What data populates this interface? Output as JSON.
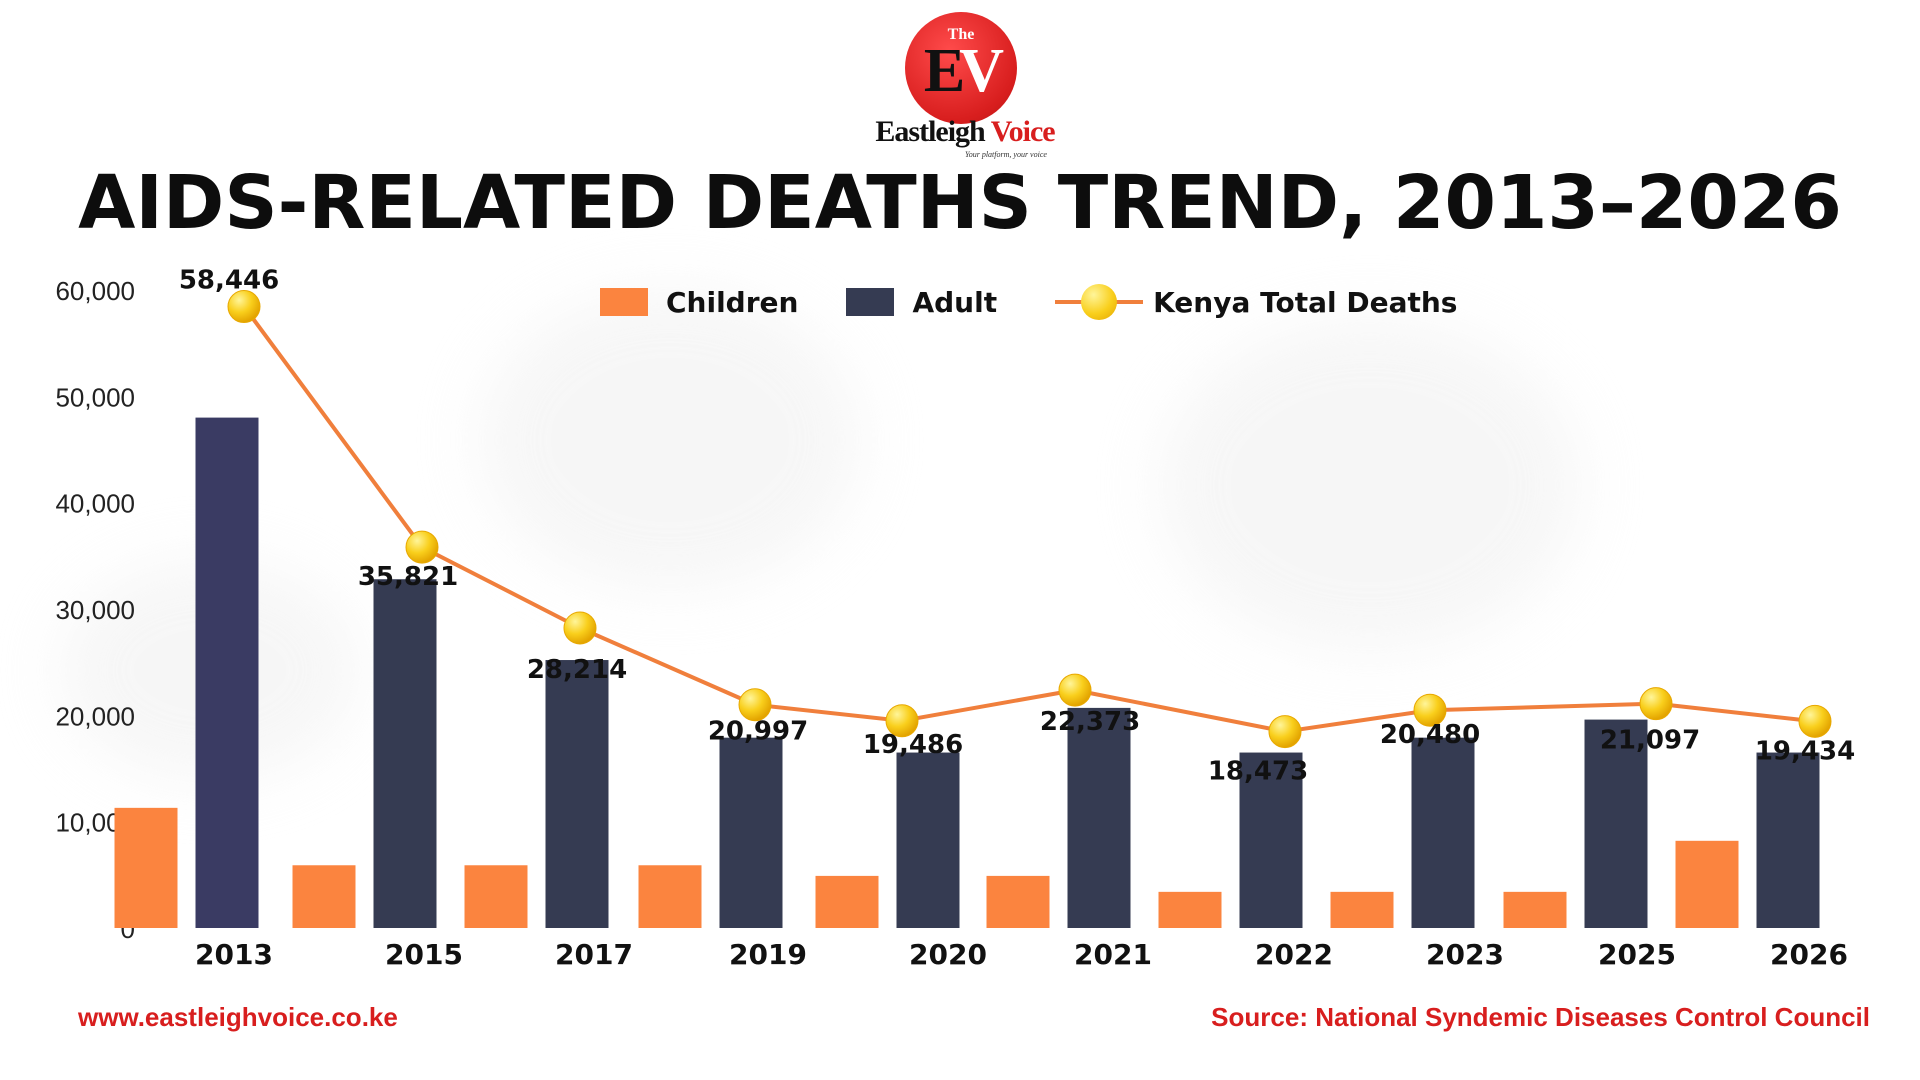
{
  "brand": {
    "logo_the": "The",
    "logo_ev_e": "E",
    "logo_ev_v": "V",
    "name_part1": "Eastleigh ",
    "name_part2": "Voice",
    "tagline": "Your platform, your voice"
  },
  "colors": {
    "children": "#fb843f",
    "adult": "#353b52",
    "adult_first": "#3a3b63",
    "line": "#f07f3c",
    "footer": "#d81e1e"
  },
  "chart_data": {
    "type": "bar",
    "title": "AIDS-RELATED DEATHS TREND, 2013–2026",
    "categories": [
      "2013",
      "2015",
      "2017",
      "2019",
      "2020",
      "2021",
      "2022",
      "2023",
      "2025",
      "2026"
    ],
    "series": [
      {
        "name": "Children",
        "type": "bar",
        "values": [
          11300,
          5900,
          5900,
          5900,
          4900,
          4900,
          3400,
          3400,
          3400,
          8200
        ]
      },
      {
        "name": "Adult",
        "type": "bar",
        "values": [
          48000,
          32800,
          25200,
          17900,
          16500,
          20700,
          16500,
          17900,
          19600,
          16500
        ]
      },
      {
        "name": "Kenya Total Deaths",
        "type": "line",
        "values": [
          58446,
          35821,
          28214,
          20997,
          19486,
          22373,
          18473,
          20480,
          21097,
          19434
        ],
        "labels": [
          "58,446",
          "35,821",
          "28,214",
          "20,997",
          "19,486",
          "22,373",
          "18,473",
          "20,480",
          "21,097",
          "19,434"
        ]
      }
    ],
    "yticks": [
      "0",
      "10,000",
      "20,000",
      "30,000",
      "40,000",
      "50,000",
      "60,000"
    ],
    "ylim": [
      0,
      60000
    ],
    "legend": "top-center",
    "grid": false
  },
  "footer": {
    "website": "www.eastleighvoice.co.ke",
    "source": "Source: National Syndemic Diseases Control Council"
  }
}
